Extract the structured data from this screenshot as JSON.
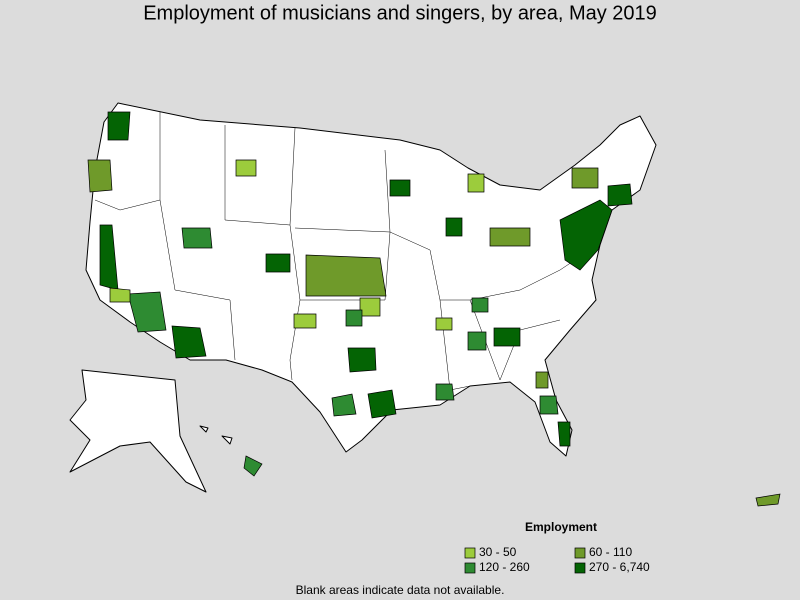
{
  "header": {
    "title": "Employment of musicians and singers, by area, May 2019"
  },
  "legend": {
    "title": "Employment",
    "items": [
      {
        "label": "30 - 50",
        "color": "#9ccc3c"
      },
      {
        "label": "60 - 110",
        "color": "#6f9a2a"
      },
      {
        "label": "120 - 260",
        "color": "#2e8b32"
      },
      {
        "label": "270 - 6,740",
        "color": "#046404"
      }
    ]
  },
  "footnote": "Blank areas indicate data not available."
}
